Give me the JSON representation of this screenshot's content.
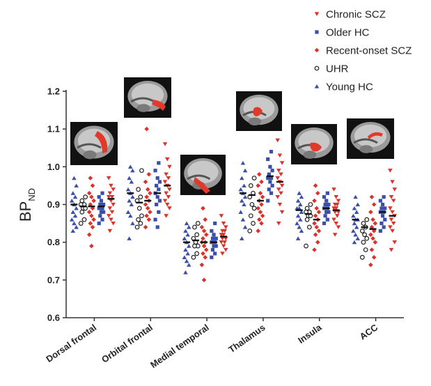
{
  "chart_data": {
    "type": "scatter",
    "ylabel": "BP",
    "ylabel_sub": "ND",
    "ylim": [
      0.6,
      1.2
    ],
    "yticks": [
      "0.6",
      "0.7",
      "0.8",
      "0.9",
      "1.0",
      "1.1",
      "1.2"
    ],
    "categories": [
      "Dorsal frontal",
      "Orbital frontal",
      "Medial temporal",
      "Thalamus",
      "Insula",
      "ACC"
    ],
    "legend_position": "top-right",
    "series": [
      {
        "name": "Chronic SCZ",
        "color": "#d9342b",
        "marker": "triangle-down",
        "values": [
          [
            0.97,
            0.95,
            0.94,
            0.93,
            0.92,
            0.92,
            0.91,
            0.9,
            0.89,
            0.88,
            0.87,
            0.86,
            0.85,
            0.83
          ],
          [
            1.06,
            1.02,
            1.0,
            0.98,
            0.97,
            0.96,
            0.95,
            0.94,
            0.93,
            0.92,
            0.91,
            0.9,
            0.89,
            0.87
          ],
          [
            0.87,
            0.85,
            0.84,
            0.83,
            0.83,
            0.82,
            0.82,
            0.81,
            0.81,
            0.8,
            0.8,
            0.79,
            0.78,
            0.77
          ],
          [
            1.07,
            1.03,
            1.01,
            0.99,
            0.98,
            0.97,
            0.96,
            0.95,
            0.94,
            0.93,
            0.92,
            0.9,
            0.88,
            0.85
          ],
          [
            0.94,
            0.92,
            0.91,
            0.9,
            0.9,
            0.89,
            0.89,
            0.88,
            0.88,
            0.87,
            0.86,
            0.85,
            0.84,
            0.82
          ],
          [
            0.99,
            0.96,
            0.94,
            0.92,
            0.91,
            0.89,
            0.88,
            0.87,
            0.86,
            0.85,
            0.84,
            0.83,
            0.8,
            0.78
          ]
        ],
        "means": [
          0.915,
          0.95,
          0.815,
          0.96,
          0.885,
          0.87
        ]
      },
      {
        "name": "Older HC",
        "color": "#3b4fa8",
        "marker": "square",
        "values": [
          [
            0.93,
            0.92,
            0.91,
            0.9,
            0.9,
            0.89,
            0.89,
            0.88,
            0.88,
            0.87,
            0.86,
            0.85
          ],
          [
            1.01,
            0.99,
            0.97,
            0.96,
            0.95,
            0.94,
            0.93,
            0.92,
            0.91,
            0.9,
            0.88,
            0.86,
            0.84
          ],
          [
            0.85,
            0.83,
            0.82,
            0.81,
            0.81,
            0.8,
            0.8,
            0.79,
            0.79,
            0.78,
            0.77,
            0.76
          ],
          [
            1.04,
            1.02,
            1.0,
            0.99,
            0.98,
            0.97,
            0.97,
            0.96,
            0.95,
            0.94,
            0.93,
            0.91
          ],
          [
            0.93,
            0.92,
            0.91,
            0.9,
            0.9,
            0.89,
            0.89,
            0.88,
            0.88,
            0.87,
            0.86,
            0.85
          ],
          [
            0.92,
            0.91,
            0.9,
            0.89,
            0.89,
            0.88,
            0.88,
            0.87,
            0.86,
            0.85,
            0.84,
            0.83
          ]
        ],
        "means": [
          0.895,
          0.93,
          0.8,
          0.975,
          0.89,
          0.88
        ]
      },
      {
        "name": "Recent-onset SCZ",
        "color": "#d9342b",
        "marker": "diamond",
        "values": [
          [
            0.97,
            0.95,
            0.93,
            0.92,
            0.91,
            0.9,
            0.89,
            0.88,
            0.87,
            0.86,
            0.85,
            0.84,
            0.82,
            0.79
          ],
          [
            1.1,
            0.98,
            0.96,
            0.94,
            0.93,
            0.92,
            0.91,
            0.9,
            0.89,
            0.88,
            0.87,
            0.86,
            0.84
          ],
          [
            0.89,
            0.86,
            0.84,
            0.83,
            0.82,
            0.81,
            0.8,
            0.8,
            0.79,
            0.78,
            0.77,
            0.76,
            0.74,
            0.7
          ],
          [
            0.98,
            0.96,
            0.95,
            0.93,
            0.92,
            0.91,
            0.9,
            0.89,
            0.88,
            0.87,
            0.86,
            0.85,
            0.83
          ],
          [
            0.95,
            0.93,
            0.91,
            0.89,
            0.88,
            0.87,
            0.86,
            0.85,
            0.84,
            0.83,
            0.82,
            0.8,
            0.78
          ],
          [
            0.92,
            0.9,
            0.88,
            0.86,
            0.85,
            0.84,
            0.83,
            0.82,
            0.81,
            0.8,
            0.78,
            0.76,
            0.74
          ]
        ],
        "means": [
          0.895,
          0.91,
          0.8,
          0.91,
          0.86,
          0.835
        ]
      },
      {
        "name": "UHR",
        "color": "#222222",
        "marker": "circle-open",
        "values": [
          [
            0.92,
            0.91,
            0.9,
            0.9,
            0.89,
            0.89,
            0.88,
            0.86,
            0.85
          ],
          [
            0.99,
            0.94,
            0.92,
            0.91,
            0.89,
            0.87,
            0.86,
            0.85,
            0.84
          ],
          [
            0.85,
            0.84,
            0.82,
            0.81,
            0.8,
            0.79,
            0.79,
            0.77,
            0.76
          ],
          [
            0.97,
            0.95,
            0.93,
            0.92,
            0.9,
            0.89,
            0.87,
            0.85,
            0.83
          ],
          [
            0.9,
            0.89,
            0.88,
            0.88,
            0.87,
            0.87,
            0.86,
            0.84,
            0.79
          ],
          [
            0.86,
            0.85,
            0.84,
            0.83,
            0.82,
            0.81,
            0.8,
            0.78,
            0.76
          ]
        ],
        "means": [
          0.895,
          0.905,
          0.805,
          0.925,
          0.875,
          0.84
        ]
      },
      {
        "name": "Young HC",
        "color": "#3b4fa8",
        "marker": "triangle-up",
        "values": [
          [
            0.97,
            0.95,
            0.93,
            0.92,
            0.91,
            0.9,
            0.89,
            0.88,
            0.87,
            0.86,
            0.85,
            0.84,
            0.83
          ],
          [
            1.0,
            0.99,
            0.97,
            0.96,
            0.94,
            0.93,
            0.92,
            0.91,
            0.9,
            0.88,
            0.87,
            0.85,
            0.81
          ],
          [
            0.85,
            0.84,
            0.83,
            0.82,
            0.81,
            0.8,
            0.79,
            0.78,
            0.77,
            0.76,
            0.75,
            0.74,
            0.72
          ],
          [
            1.01,
            0.99,
            0.97,
            0.95,
            0.94,
            0.93,
            0.92,
            0.91,
            0.9,
            0.88,
            0.86,
            0.84,
            0.81
          ],
          [
            0.93,
            0.92,
            0.91,
            0.9,
            0.89,
            0.89,
            0.88,
            0.87,
            0.86,
            0.85,
            0.84,
            0.83,
            0.81
          ],
          [
            0.92,
            0.9,
            0.89,
            0.88,
            0.87,
            0.86,
            0.86,
            0.85,
            0.84,
            0.83,
            0.82,
            0.81,
            0.8
          ]
        ],
        "means": [
          0.9,
          0.93,
          0.8,
          0.93,
          0.885,
          0.86
        ]
      }
    ]
  }
}
